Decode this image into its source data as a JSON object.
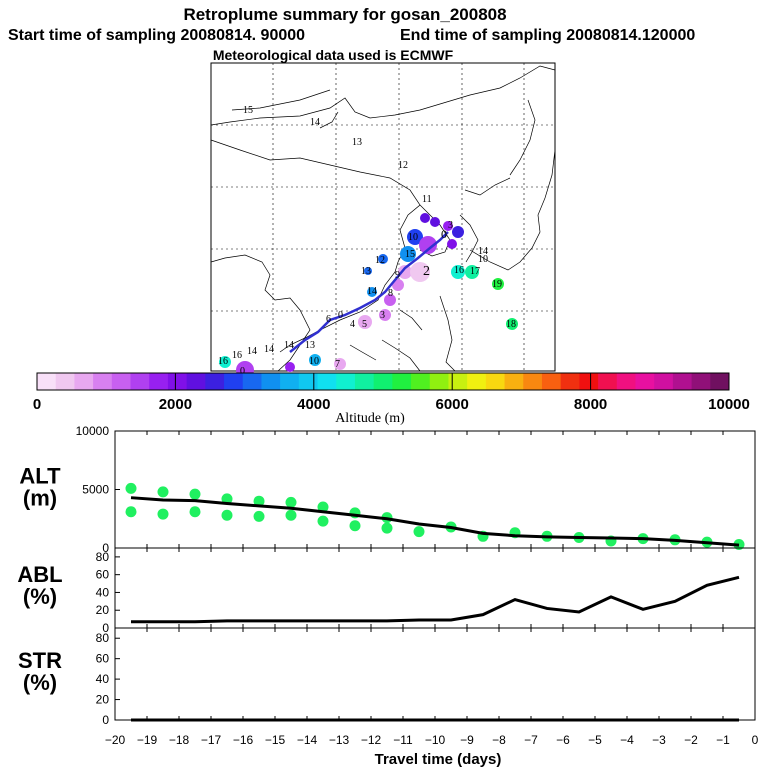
{
  "header": {
    "title": "Retroplume summary for gosan_200808",
    "start_time": "Start time of sampling 20080814. 90000",
    "end_time": "End time of sampling 20080814.120000",
    "met_data": "Meteorological data used is ECMWF"
  },
  "colorbar": {
    "title": "Altitude  (m)",
    "tick_labels": [
      "0",
      "2000",
      "4000",
      "6000",
      "8000",
      "10000"
    ],
    "tick_values": [
      0,
      2000,
      4000,
      6000,
      8000,
      10000
    ],
    "colors": [
      "#f8e0f8",
      "#f0c8f0",
      "#e8a8f0",
      "#d880f0",
      "#c860f0",
      "#b040f0",
      "#9820f0",
      "#8010e8",
      "#6010e0",
      "#3c20e0",
      "#2040f0",
      "#1868f0",
      "#1090f0",
      "#10b0f0",
      "#10c8f0",
      "#10e0f0",
      "#10f0d0",
      "#10f0a0",
      "#10f070",
      "#20f040",
      "#50f020",
      "#90f010",
      "#c8f010",
      "#f0f010",
      "#f8d810",
      "#f8b010",
      "#f88810",
      "#f86010",
      "#f03010",
      "#f01010",
      "#f01050",
      "#f01080",
      "#e810a0",
      "#d010a0",
      "#b01090",
      "#901078",
      "#701060"
    ]
  },
  "map": {
    "labels": [
      "15",
      "14",
      "13",
      "12",
      "11",
      "10",
      "9",
      "8",
      "7",
      "6",
      "5",
      "4",
      "3",
      "2",
      "1",
      "0",
      "16",
      "17",
      "18",
      "19"
    ],
    "path_color": "#3030d0"
  },
  "chart_data": [
    {
      "type": "scatter",
      "panel_label": "ALT\n(m)",
      "panel_label_lines": [
        "ALT",
        "(m)"
      ],
      "series": [
        {
          "name": "mean altitude (line)",
          "x": [
            -19.5,
            -18.5,
            -17.5,
            -16.5,
            -15.5,
            -14.5,
            -13.5,
            -12.5,
            -11.5,
            -10.5,
            -9.5,
            -8.5,
            -7.5,
            -6.5,
            -5.5,
            -4.5,
            -3.5,
            -2.5,
            -1.5,
            -0.5
          ],
          "values": [
            4300,
            4100,
            4050,
            3800,
            3600,
            3400,
            3100,
            2800,
            2500,
            2050,
            1750,
            1250,
            1050,
            950,
            900,
            850,
            800,
            650,
            450,
            250
          ]
        },
        {
          "name": "plume cluster altitudes (dots)",
          "x": [
            -19.5,
            -19.5,
            -18.5,
            -18.5,
            -17.5,
            -17.5,
            -16.5,
            -16.5,
            -15.5,
            -15.5,
            -14.5,
            -14.5,
            -13.5,
            -13.5,
            -12.5,
            -12.5,
            -11.5,
            -11.5,
            -10.5,
            -9.5,
            -8.5,
            -7.5,
            -6.5,
            -5.5,
            -4.5,
            -3.5,
            -2.5,
            -1.5,
            -0.5
          ],
          "values": [
            5100,
            3100,
            4800,
            2900,
            4600,
            3100,
            4200,
            2800,
            4000,
            2700,
            3900,
            2800,
            3500,
            2300,
            3000,
            1900,
            2600,
            1700,
            1400,
            1800,
            1000,
            1300,
            1000,
            900,
            600,
            800,
            700,
            500,
            300
          ]
        }
      ],
      "ylim": [
        0,
        10000
      ],
      "y_ticks": [
        "0",
        "5000",
        "10000"
      ],
      "dot_color": "#20f060"
    },
    {
      "type": "line",
      "panel_label_lines": [
        "ABL",
        "(%)"
      ],
      "x": [
        -19.5,
        -18.5,
        -17.5,
        -16.5,
        -15.5,
        -14.5,
        -13.5,
        -12.5,
        -11.5,
        -10.5,
        -9.5,
        -8.5,
        -7.5,
        -6.5,
        -5.5,
        -4.5,
        -3.5,
        -2.5,
        -1.5,
        -0.5
      ],
      "values": [
        7,
        7,
        7,
        8,
        8,
        8,
        8,
        8,
        8,
        9,
        9,
        15,
        32,
        22,
        18,
        35,
        21,
        30,
        48,
        57
      ],
      "ylim": [
        0,
        90
      ],
      "y_ticks": [
        "0",
        "20",
        "40",
        "60",
        "80"
      ]
    },
    {
      "type": "line",
      "panel_label_lines": [
        "STR",
        "(%)"
      ],
      "x": [
        -19.5,
        -18.5,
        -17.5,
        -16.5,
        -15.5,
        -14.5,
        -13.5,
        -12.5,
        -11.5,
        -10.5,
        -9.5,
        -8.5,
        -7.5,
        -6.5,
        -5.5,
        -4.5,
        -3.5,
        -2.5,
        -1.5,
        -0.5
      ],
      "values": [
        0,
        0,
        0,
        0,
        0,
        0,
        0,
        0,
        0,
        0,
        0,
        0,
        0,
        0,
        0,
        0,
        0,
        0,
        0,
        0
      ],
      "ylim": [
        0,
        90
      ],
      "y_ticks": [
        "0",
        "20",
        "40",
        "60",
        "80"
      ]
    }
  ],
  "x_axis": {
    "xlabel": "Travel time (days)",
    "xlim": [
      -20,
      0
    ],
    "tick_labels": [
      "−20",
      "−19",
      "−18",
      "−17",
      "−16",
      "−15",
      "−14",
      "−13",
      "−12",
      "−11",
      "−10",
      "−9",
      "−8",
      "−7",
      "−6",
      "−5",
      "−4",
      "−3",
      "−2",
      "−1",
      "0"
    ],
    "tick_values": [
      -20,
      -19,
      -18,
      -17,
      -16,
      -15,
      -14,
      -13,
      -12,
      -11,
      -10,
      -9,
      -8,
      -7,
      -6,
      -5,
      -4,
      -3,
      -2,
      -1,
      0
    ]
  }
}
